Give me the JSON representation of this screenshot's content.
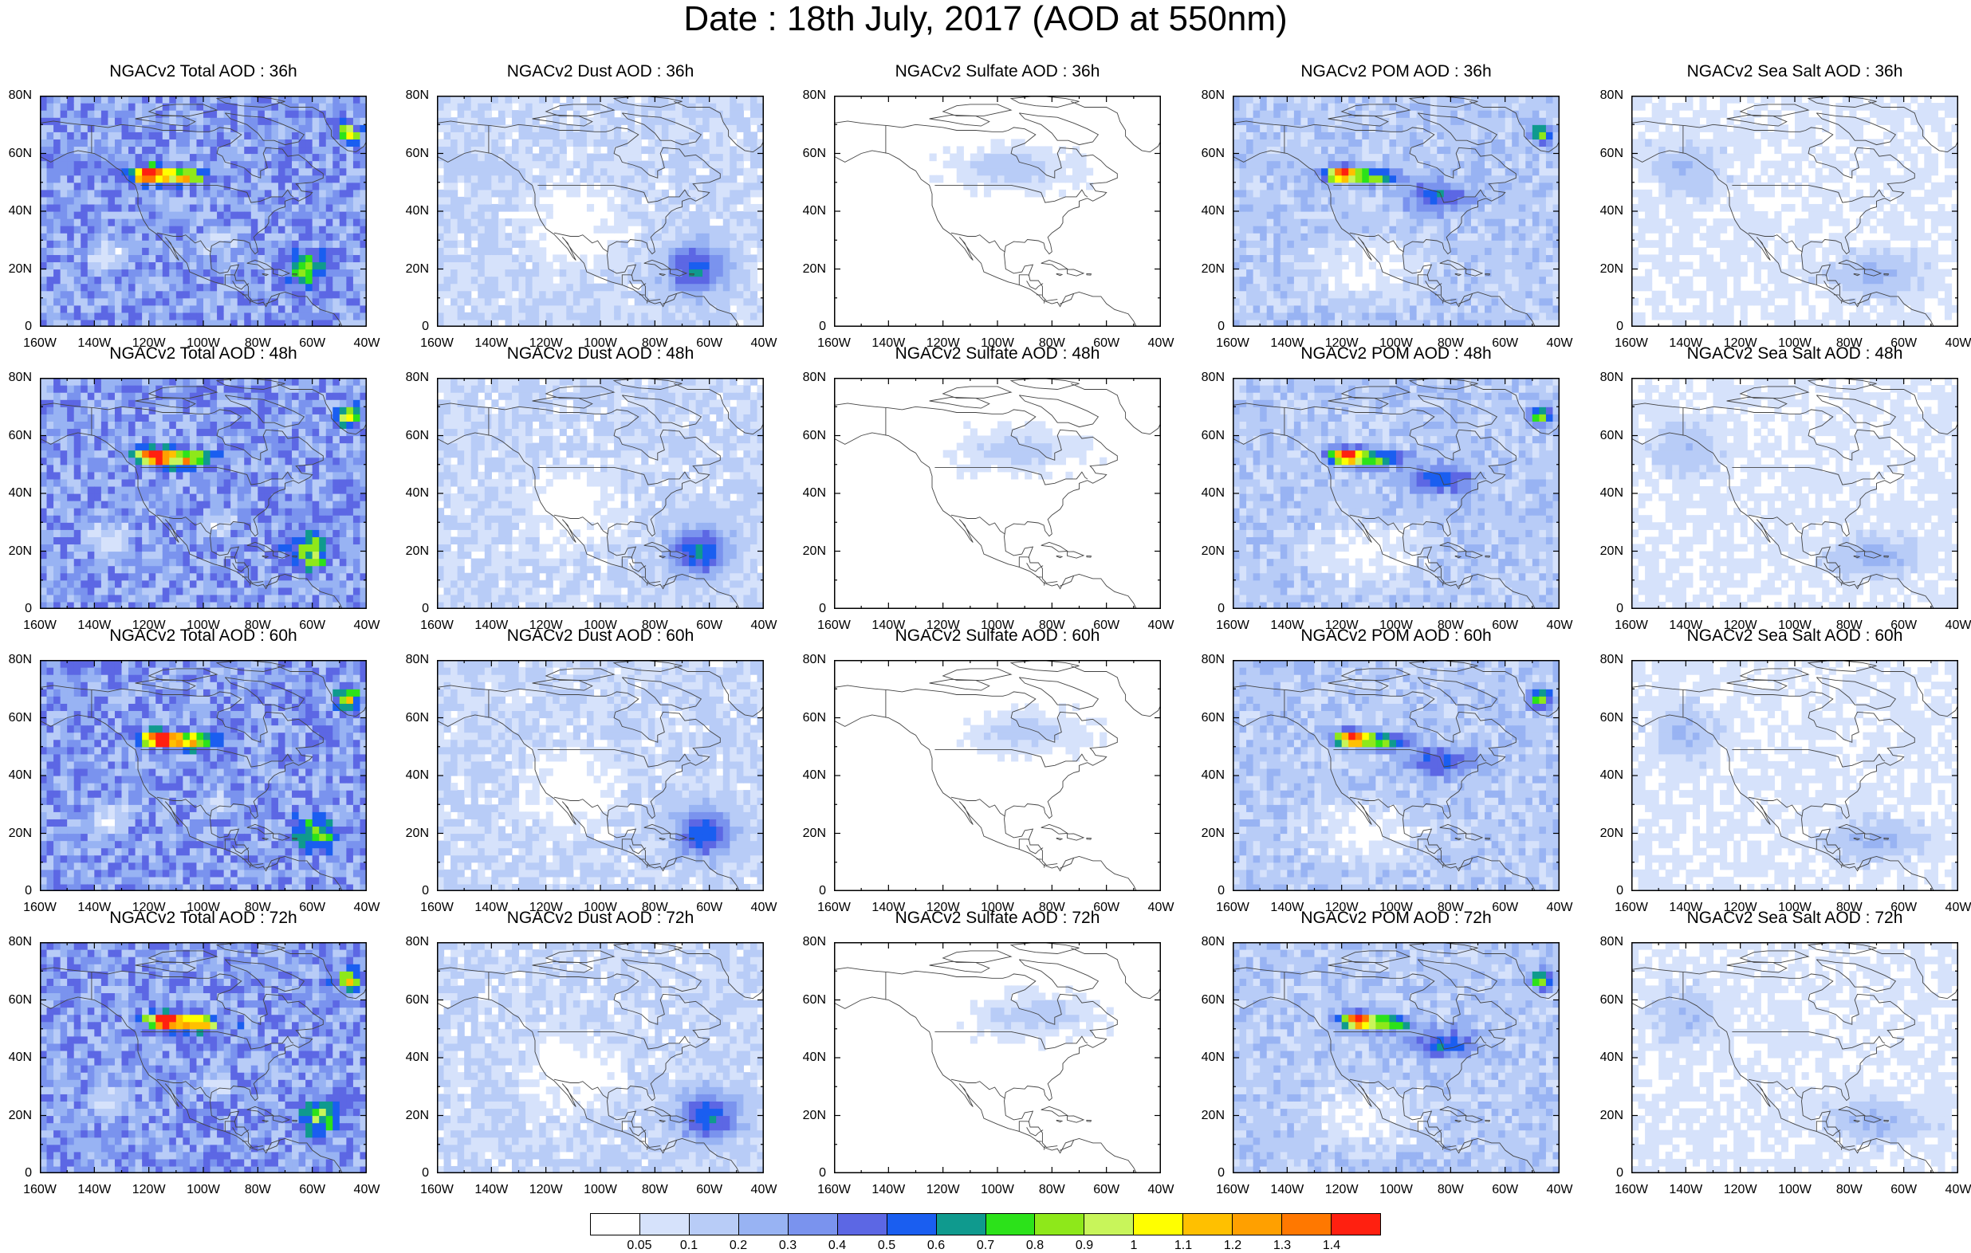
{
  "title": "Date : 18th July, 2017 (AOD at 550nm)",
  "rows": [
    {
      "panels": [
        {
          "title": "NGACv2 Total AOD : 36h",
          "species": "total",
          "hour": 36
        },
        {
          "title": "NGACv2 Dust AOD : 36h",
          "species": "dust",
          "hour": 36
        },
        {
          "title": "NGACv2 Sulfate AOD : 36h",
          "species": "sulfate",
          "hour": 36
        },
        {
          "title": "NGACv2 POM AOD : 36h",
          "species": "pom",
          "hour": 36
        },
        {
          "title": "NGACv2 Sea Salt AOD : 36h",
          "species": "seasalt",
          "hour": 36
        }
      ]
    },
    {
      "panels": [
        {
          "title": "NGACv2 Total AOD : 48h",
          "species": "total",
          "hour": 48
        },
        {
          "title": "NGACv2 Dust AOD : 48h",
          "species": "dust",
          "hour": 48
        },
        {
          "title": "NGACv2 Sulfate AOD : 48h",
          "species": "sulfate",
          "hour": 48
        },
        {
          "title": "NGACv2 POM AOD : 48h",
          "species": "pom",
          "hour": 48
        },
        {
          "title": "NGACv2 Sea Salt AOD : 48h",
          "species": "seasalt",
          "hour": 48
        }
      ]
    },
    {
      "panels": [
        {
          "title": "NGACv2 Total AOD : 60h",
          "species": "total",
          "hour": 60
        },
        {
          "title": "NGACv2 Dust AOD : 60h",
          "species": "dust",
          "hour": 60
        },
        {
          "title": "NGACv2 Sulfate AOD : 60h",
          "species": "sulfate",
          "hour": 60
        },
        {
          "title": "NGACv2 POM AOD : 60h",
          "species": "pom",
          "hour": 60
        },
        {
          "title": "NGACv2 Sea Salt AOD : 60h",
          "species": "seasalt",
          "hour": 60
        }
      ]
    },
    {
      "panels": [
        {
          "title": "NGACv2 Total AOD : 72h",
          "species": "total",
          "hour": 72
        },
        {
          "title": "NGACv2 Dust AOD : 72h",
          "species": "dust",
          "hour": 72
        },
        {
          "title": "NGACv2 Sulfate AOD : 72h",
          "species": "sulfate",
          "hour": 72
        },
        {
          "title": "NGACv2 POM AOD : 72h",
          "species": "pom",
          "hour": 72
        },
        {
          "title": "NGACv2 Sea Salt  AOD : 72h",
          "species": "seasalt",
          "hour": 72
        }
      ]
    }
  ],
  "lat_ticks": [
    "80N",
    "60N",
    "40N",
    "20N",
    "0"
  ],
  "lon_ticks": [
    "160W",
    "140W",
    "120W",
    "100W",
    "80W",
    "60W",
    "40W"
  ],
  "extent": {
    "lon": [
      -160,
      -40
    ],
    "lat": [
      0,
      80
    ]
  },
  "colorbar": {
    "labels": [
      "0.05",
      "0.1",
      "0.2",
      "0.3",
      "0.4",
      "0.5",
      "0.6",
      "0.7",
      "0.8",
      "0.9",
      "1",
      "1.1",
      "1.2",
      "1.3",
      "1.4"
    ],
    "colors": [
      "#ffffff",
      "#d6e2fb",
      "#b8ccf7",
      "#98b3f3",
      "#7a93ee",
      "#5c67e4",
      "#1a5ef0",
      "#0f9a8e",
      "#2ce21a",
      "#8ee81a",
      "#c8f55a",
      "#ffff00",
      "#ffc000",
      "#ffa000",
      "#ff7800",
      "#ff2010"
    ]
  },
  "features": {
    "total": {
      "bg": 0.3,
      "plumes": [
        {
          "lon": -120,
          "lat": 53,
          "v": 1.45,
          "rx": 6,
          "ry": 2.5,
          "g": 0.02
        },
        {
          "lon": -108,
          "lat": 52,
          "v": 0.9,
          "rx": 9,
          "ry": 2.5,
          "g": 0.02
        },
        {
          "lon": -62,
          "lat": 20,
          "v": 0.55,
          "rx": 7,
          "ry": 6,
          "g": 0.015
        },
        {
          "lon": -47,
          "lat": 67,
          "v": 0.8,
          "rx": 4,
          "ry": 3,
          "g": 0.0
        }
      ],
      "clear": [
        {
          "lon": -135,
          "lat": 25,
          "rx": 10,
          "ry": 8
        },
        {
          "lon": -95,
          "lat": 30,
          "rx": 8,
          "ry": 6
        }
      ]
    },
    "dust": {
      "bg": 0.1,
      "plumes": [
        {
          "lon": -65,
          "lat": 20,
          "v": 0.5,
          "rx": 10,
          "ry": 8,
          "g": 0.015
        }
      ],
      "clear": [
        {
          "lon": -110,
          "lat": 35,
          "rx": 25,
          "ry": 20
        }
      ]
    },
    "sulfate": {
      "bg": 0.03,
      "plumes": [
        {
          "lon": -95,
          "lat": 55,
          "v": 0.12,
          "rx": 18,
          "ry": 6,
          "g": 0.03
        }
      ],
      "clear": []
    },
    "pom": {
      "bg": 0.15,
      "plumes": [
        {
          "lon": -120,
          "lat": 53,
          "v": 1.4,
          "rx": 6,
          "ry": 2.5,
          "g": 0.02
        },
        {
          "lon": -108,
          "lat": 52,
          "v": 0.7,
          "rx": 9,
          "ry": 2.5,
          "g": 0.02
        },
        {
          "lon": -47,
          "lat": 67,
          "v": 0.75,
          "rx": 4,
          "ry": 3,
          "g": 0.0
        },
        {
          "lon": -85,
          "lat": 45,
          "v": 0.4,
          "rx": 12,
          "ry": 5,
          "g": 0.01
        }
      ],
      "clear": [
        {
          "lon": -110,
          "lat": 20,
          "rx": 30,
          "ry": 15
        }
      ]
    },
    "seasalt": {
      "bg": 0.06,
      "plumes": [
        {
          "lon": -140,
          "lat": 55,
          "v": 0.14,
          "rx": 10,
          "ry": 8,
          "g": 0.0
        },
        {
          "lon": -70,
          "lat": 18,
          "v": 0.18,
          "rx": 14,
          "ry": 6,
          "g": 0.0
        }
      ],
      "clear": []
    }
  }
}
